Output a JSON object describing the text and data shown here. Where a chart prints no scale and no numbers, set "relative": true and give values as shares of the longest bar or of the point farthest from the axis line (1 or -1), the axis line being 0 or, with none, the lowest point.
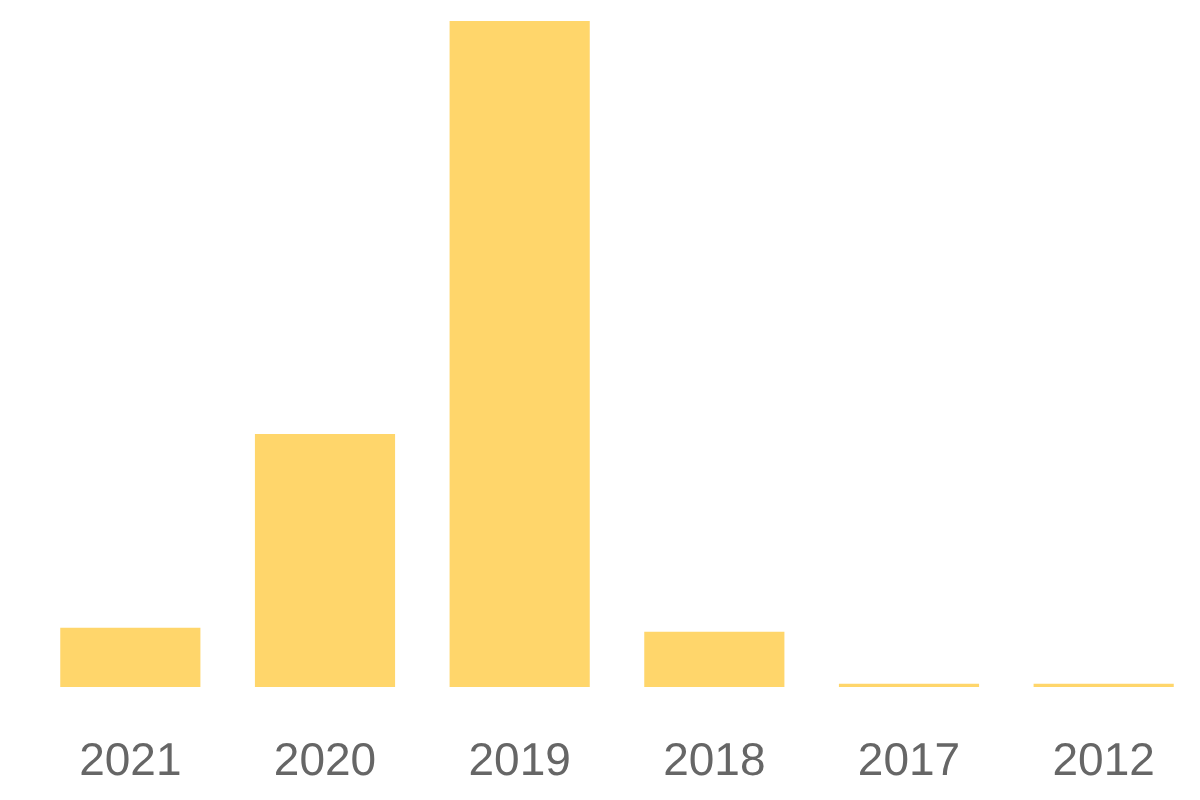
{
  "chart_data": {
    "type": "bar",
    "categories": [
      "2021",
      "2020",
      "2019",
      "2018",
      "2017",
      "2012"
    ],
    "values": [
      0.089,
      0.38,
      1,
      0.083,
      0.005,
      0.005
    ],
    "color": "#ffd66b",
    "relative": true
  }
}
